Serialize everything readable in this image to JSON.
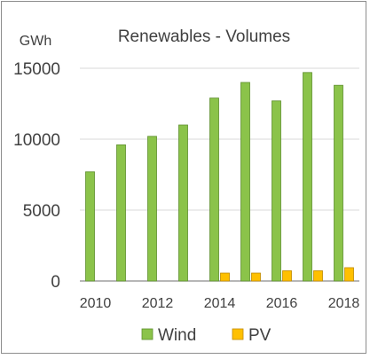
{
  "chart_data": {
    "type": "bar",
    "title": "Renewables  - Volumes",
    "unit_label": "GWh",
    "categories": [
      "2010",
      "2011",
      "2012",
      "2013",
      "2014",
      "2015",
      "2016",
      "2017",
      "2018"
    ],
    "x_tick_labels": [
      "2010",
      "",
      "2012",
      "",
      "2014",
      "",
      "2016",
      "",
      "2018"
    ],
    "y_ticks": [
      "0",
      "5000",
      "10000",
      "15000"
    ],
    "ylim": [
      0,
      15000
    ],
    "grid": true,
    "legend_position": "bottom",
    "series": [
      {
        "name": "Wind",
        "color": "#8bc34a",
        "values": [
          7700,
          9600,
          10200,
          11000,
          12900,
          14000,
          12700,
          14700,
          13800
        ]
      },
      {
        "name": "PV",
        "color": "#ffc000",
        "values": [
          0,
          0,
          0,
          0,
          560,
          560,
          720,
          720,
          940
        ]
      }
    ]
  }
}
